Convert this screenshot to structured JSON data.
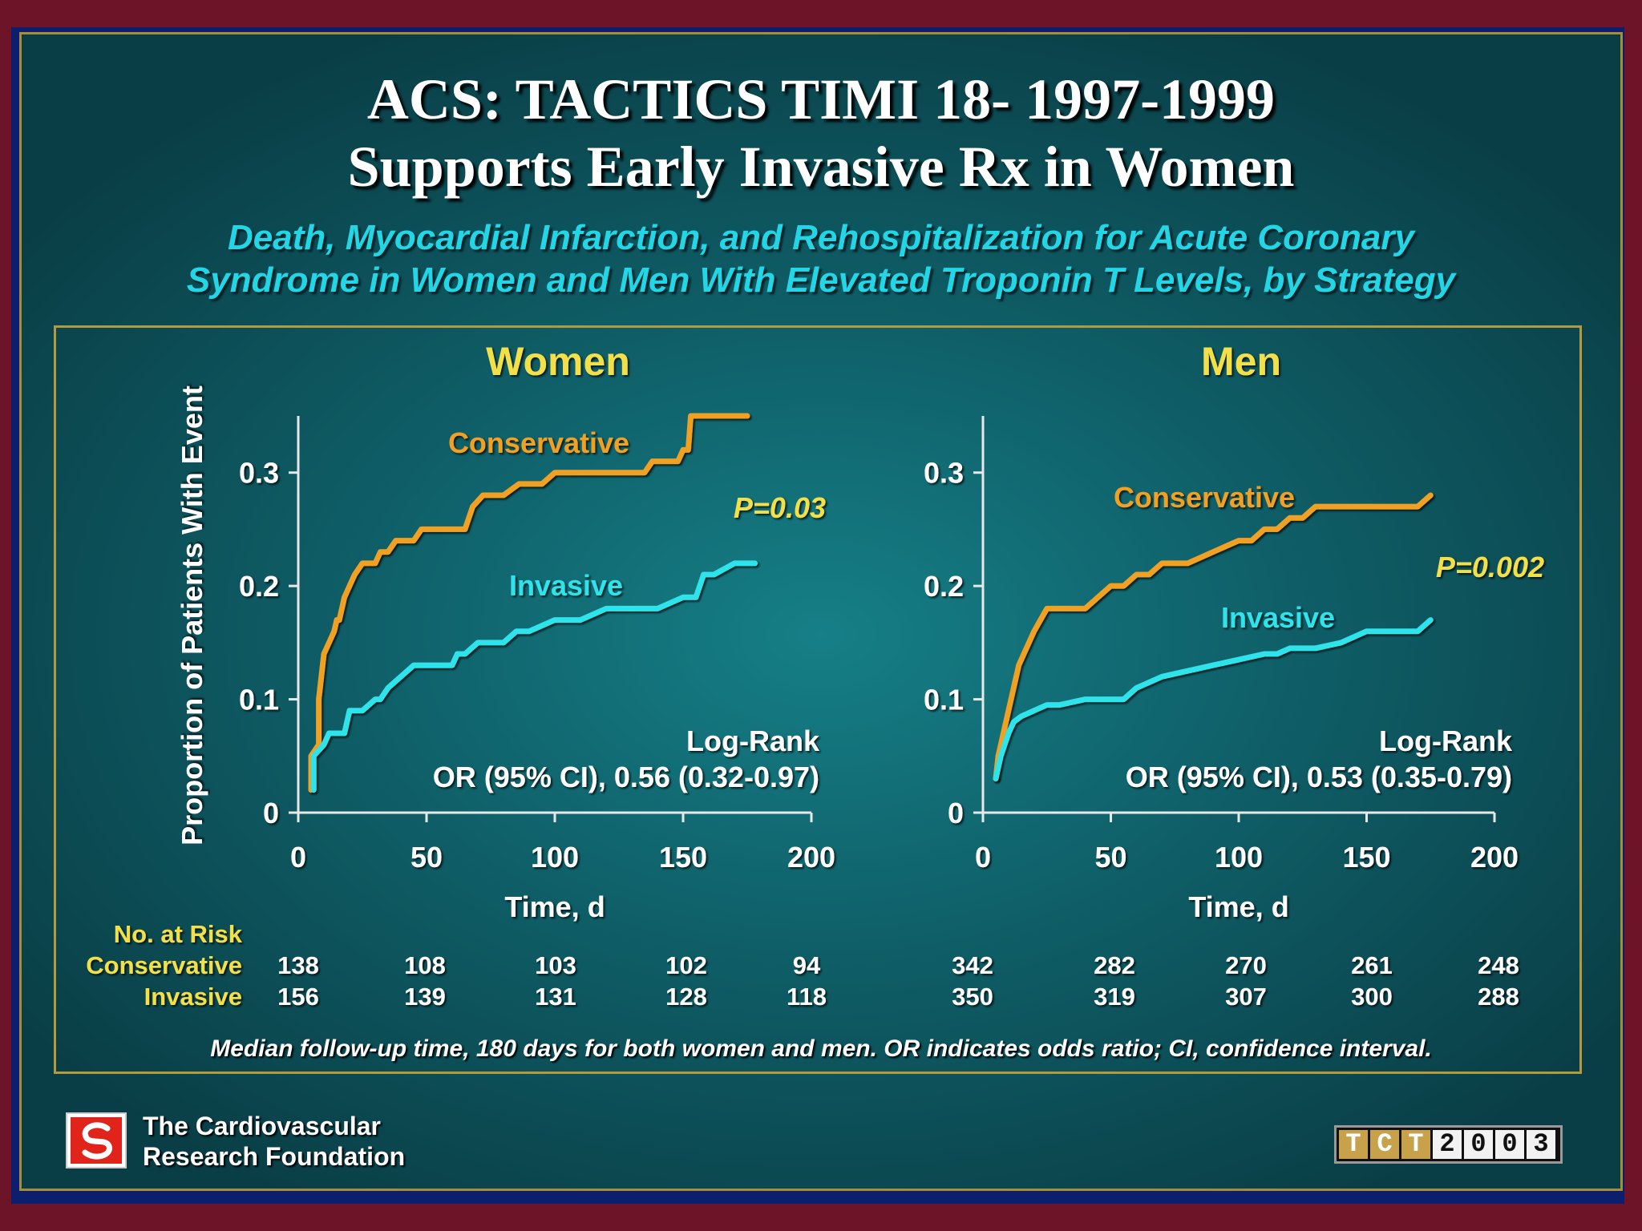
{
  "slide": {
    "title_line1": "ACS: TACTICS TIMI 18- 1997-1999",
    "title_line2": "Supports Early Invasive Rx in Women",
    "subtitle_line1": "Death, Myocardial Infarction, and Rehospitalization for Acute Coronary",
    "subtitle_line2": "Syndrome in Women and Men With Elevated Troponin T Levels, by Strategy",
    "footnote": "Median follow-up time, 180 days for both women and men. OR indicates odds ratio; CI, confidence interval.",
    "organization_line1": "The Cardiovascular",
    "organization_line2": "Research Foundation",
    "conference_badge": [
      "T",
      "C",
      "T",
      "2",
      "0",
      "0",
      "3"
    ]
  },
  "colors": {
    "conservative": "#f0a020",
    "invasive": "#2ee3ea",
    "title": "#ffffff",
    "subtitle": "#22d6e6",
    "panel_title": "#f3e04a",
    "frame": "#b39a3c"
  },
  "risk_table": {
    "header": "No. at Risk",
    "row_labels": [
      "Conservative",
      "Invasive"
    ],
    "women": {
      "Conservative": [
        "138",
        "108",
        "103",
        "102",
        "94"
      ],
      "Invasive": [
        "156",
        "139",
        "131",
        "128",
        "118"
      ]
    },
    "men": {
      "Conservative": [
        "342",
        "282",
        "270",
        "261",
        "248"
      ],
      "Invasive": [
        "350",
        "319",
        "307",
        "300",
        "288"
      ]
    }
  },
  "chart_data": [
    {
      "type": "line",
      "title": "Women",
      "xlabel": "Time, d",
      "ylabel": "Proportion of Patients With Event",
      "xlim": [
        0,
        200
      ],
      "ylim": [
        0,
        0.35
      ],
      "x_ticks": [
        0,
        50,
        100,
        150,
        200
      ],
      "y_ticks": [
        0,
        0.1,
        0.2,
        0.3
      ],
      "x_tick_labels": [
        "0",
        "50",
        "100",
        "150",
        "200"
      ],
      "y_tick_labels": [
        "0",
        "0.1",
        "0.2",
        "0.3"
      ],
      "grid": false,
      "annotations": {
        "p_value": "P=0.03",
        "stat_line1": "Log-Rank",
        "stat_line2": "OR (95% CI), 0.56 (0.32-0.97)"
      },
      "series": [
        {
          "name": "Conservative",
          "x": [
            5,
            5,
            8,
            8,
            9,
            10,
            12,
            14,
            15,
            16,
            18,
            20,
            22,
            25,
            28,
            30,
            32,
            35,
            38,
            45,
            48,
            55,
            65,
            68,
            72,
            80,
            86,
            95,
            100,
            120,
            135,
            138,
            148,
            150,
            152,
            153,
            160,
            175
          ],
          "y": [
            0.02,
            0.05,
            0.06,
            0.1,
            0.12,
            0.14,
            0.15,
            0.16,
            0.17,
            0.17,
            0.19,
            0.2,
            0.21,
            0.22,
            0.22,
            0.22,
            0.23,
            0.23,
            0.24,
            0.24,
            0.25,
            0.25,
            0.25,
            0.27,
            0.28,
            0.28,
            0.29,
            0.29,
            0.3,
            0.3,
            0.3,
            0.31,
            0.31,
            0.32,
            0.32,
            0.35,
            0.35,
            0.35
          ]
        },
        {
          "name": "Invasive",
          "x": [
            6,
            6,
            10,
            12,
            18,
            20,
            25,
            30,
            32,
            35,
            40,
            45,
            55,
            60,
            62,
            65,
            70,
            80,
            85,
            90,
            100,
            110,
            120,
            140,
            150,
            155,
            158,
            162,
            170,
            178
          ],
          "y": [
            0.02,
            0.05,
            0.06,
            0.07,
            0.07,
            0.09,
            0.09,
            0.1,
            0.1,
            0.11,
            0.12,
            0.13,
            0.13,
            0.13,
            0.14,
            0.14,
            0.15,
            0.15,
            0.16,
            0.16,
            0.17,
            0.17,
            0.18,
            0.18,
            0.19,
            0.19,
            0.21,
            0.21,
            0.22,
            0.22
          ]
        }
      ]
    },
    {
      "type": "line",
      "title": "Men",
      "xlabel": "Time, d",
      "ylabel": "",
      "xlim": [
        0,
        200
      ],
      "ylim": [
        0,
        0.35
      ],
      "x_ticks": [
        0,
        50,
        100,
        150,
        200
      ],
      "y_ticks": [
        0,
        0.1,
        0.2,
        0.3
      ],
      "x_tick_labels": [
        "0",
        "50",
        "100",
        "150",
        "200"
      ],
      "y_tick_labels": [
        "0",
        "0.1",
        "0.2",
        "0.3"
      ],
      "grid": false,
      "annotations": {
        "p_value": "P=0.002",
        "stat_line1": "Log-Rank",
        "stat_line2": "OR (95% CI), 0.53 (0.35-0.79)"
      },
      "series": [
        {
          "name": "Conservative",
          "x": [
            5,
            6,
            8,
            10,
            12,
            14,
            16,
            20,
            25,
            30,
            40,
            45,
            50,
            55,
            60,
            65,
            70,
            80,
            90,
            100,
            105,
            110,
            115,
            120,
            125,
            130,
            140,
            150,
            160,
            170,
            175
          ],
          "y": [
            0.03,
            0.05,
            0.07,
            0.09,
            0.11,
            0.13,
            0.14,
            0.16,
            0.18,
            0.18,
            0.18,
            0.19,
            0.2,
            0.2,
            0.21,
            0.21,
            0.22,
            0.22,
            0.23,
            0.24,
            0.24,
            0.25,
            0.25,
            0.26,
            0.26,
            0.27,
            0.27,
            0.27,
            0.27,
            0.27,
            0.28
          ]
        },
        {
          "name": "Invasive",
          "x": [
            5,
            7,
            10,
            12,
            15,
            20,
            25,
            30,
            40,
            45,
            55,
            60,
            65,
            70,
            80,
            90,
            100,
            110,
            115,
            120,
            130,
            140,
            150,
            160,
            170,
            175
          ],
          "y": [
            0.03,
            0.05,
            0.07,
            0.08,
            0.085,
            0.09,
            0.095,
            0.095,
            0.1,
            0.1,
            0.1,
            0.11,
            0.115,
            0.12,
            0.125,
            0.13,
            0.135,
            0.14,
            0.14,
            0.145,
            0.145,
            0.15,
            0.16,
            0.16,
            0.16,
            0.17
          ]
        }
      ]
    }
  ]
}
